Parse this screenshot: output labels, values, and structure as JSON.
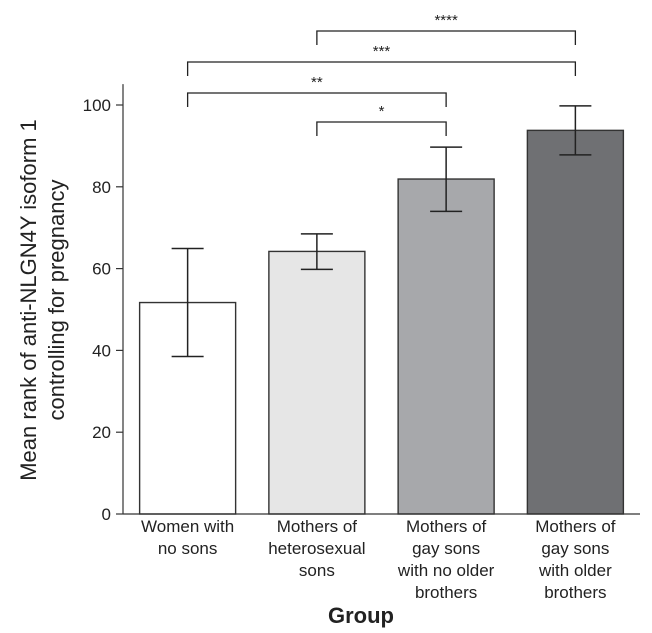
{
  "chart_data": {
    "type": "bar",
    "title": "",
    "xlabel": "Group",
    "ylabel": [
      "Mean rank of anti-NLGN4Y isoform 1",
      "controlling for pregnancy"
    ],
    "ylim": [
      0,
      110
    ],
    "yticks": [
      0,
      20,
      40,
      60,
      80,
      100
    ],
    "grid": false,
    "categories": [
      [
        "Women with",
        "no sons"
      ],
      [
        "Mothers of",
        "heterosexual",
        "sons"
      ],
      [
        "Mothers of",
        "gay sons",
        "with no older",
        "brothers"
      ],
      [
        "Mothers of",
        "gay sons",
        "with older",
        "brothers"
      ]
    ],
    "values": [
      51.7,
      64.2,
      81.9,
      93.8
    ],
    "error_low": [
      38.5,
      59.8,
      74.0,
      87.8
    ],
    "error_high": [
      64.9,
      68.5,
      89.7,
      99.8
    ],
    "colors": [
      "#ffffff",
      "#e6e6e6",
      "#a7a8ab",
      "#6f7073"
    ],
    "significance": [
      {
        "from": 1,
        "to": 2,
        "label": "*"
      },
      {
        "from": 0,
        "to": 2,
        "label": "**"
      },
      {
        "from": 0,
        "to": 3,
        "label": "***"
      },
      {
        "from": 1,
        "to": 3,
        "label": "****"
      }
    ]
  }
}
